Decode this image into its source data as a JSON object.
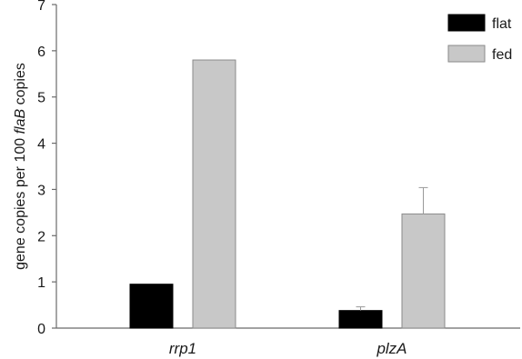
{
  "chart_data": {
    "type": "bar",
    "categories": [
      "rrp1",
      "plzA"
    ],
    "series": [
      {
        "name": "flat",
        "color": "#000000",
        "values": [
          0.95,
          0.38
        ],
        "errors": [
          0,
          0.08
        ]
      },
      {
        "name": "fed",
        "color": "#c8c8c8",
        "values": [
          5.8,
          2.47
        ],
        "errors": [
          0,
          0.57
        ]
      }
    ],
    "ylabel_parts": [
      "gene copies per 100 ",
      "flaB",
      " copies"
    ],
    "ylim": [
      0,
      7
    ],
    "yticks": [
      "0",
      "1",
      "2",
      "3",
      "4",
      "5",
      "6",
      "7"
    ],
    "legend_position": "top-right",
    "grid": false
  }
}
